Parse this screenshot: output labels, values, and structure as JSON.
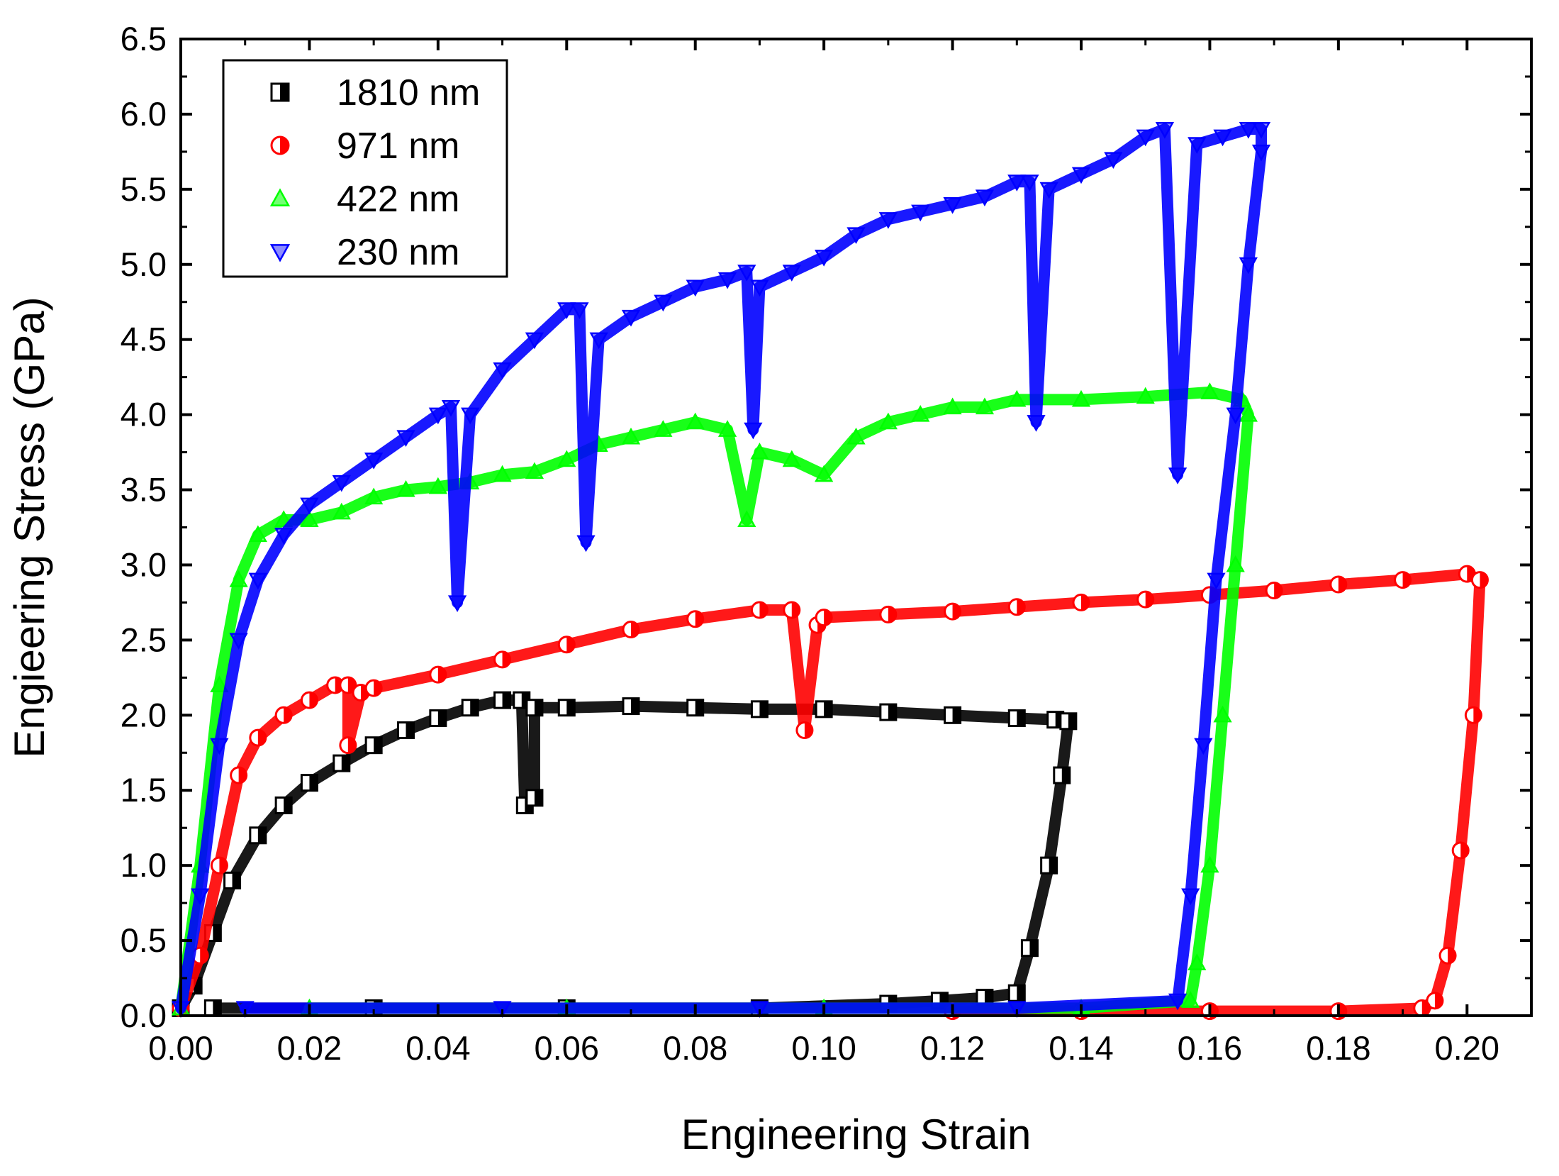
{
  "chart_data": {
    "type": "scatter",
    "title": "",
    "xlabel": "Engineering Strain",
    "ylabel": "Engieering Stress (GPa)",
    "xlim": [
      0.0,
      0.21
    ],
    "ylim": [
      0.0,
      6.5
    ],
    "xticks": [
      "0.00",
      "0.02",
      "0.04",
      "0.06",
      "0.08",
      "0.10",
      "0.12",
      "0.14",
      "0.16",
      "0.18",
      "0.20"
    ],
    "yticks": [
      "0.0",
      "0.5",
      "1.0",
      "1.5",
      "2.0",
      "2.5",
      "3.0",
      "3.5",
      "4.0",
      "4.5",
      "5.0",
      "5.5",
      "6.0",
      "6.5"
    ],
    "grid": false,
    "legend_position": "top-left",
    "series": [
      {
        "name": "1810 nm",
        "color": "#000000",
        "marker": "square-half",
        "x": [
          0.0,
          0.002,
          0.005,
          0.008,
          0.012,
          0.016,
          0.02,
          0.025,
          0.03,
          0.035,
          0.04,
          0.045,
          0.05,
          0.053,
          0.0535,
          0.055,
          0.055,
          0.06,
          0.07,
          0.08,
          0.09,
          0.1,
          0.11,
          0.12,
          0.13,
          0.136,
          0.138,
          0.137,
          0.135,
          0.132,
          0.13,
          0.125,
          0.118,
          0.11,
          0.09,
          0.06,
          0.03,
          0.005
        ],
        "y": [
          0.05,
          0.2,
          0.55,
          0.9,
          1.2,
          1.4,
          1.55,
          1.68,
          1.8,
          1.9,
          1.98,
          2.05,
          2.1,
          2.1,
          1.4,
          1.45,
          2.05,
          2.05,
          2.06,
          2.05,
          2.04,
          2.04,
          2.02,
          2.0,
          1.98,
          1.97,
          1.96,
          1.6,
          1.0,
          0.45,
          0.15,
          0.12,
          0.1,
          0.08,
          0.05,
          0.05,
          0.05,
          0.05
        ]
      },
      {
        "name": "971 nm",
        "color": "#ff0000",
        "marker": "circle-half",
        "x": [
          0.0,
          0.003,
          0.006,
          0.009,
          0.012,
          0.016,
          0.02,
          0.024,
          0.026,
          0.026,
          0.028,
          0.03,
          0.04,
          0.05,
          0.06,
          0.07,
          0.08,
          0.09,
          0.095,
          0.097,
          0.099,
          0.1,
          0.11,
          0.12,
          0.13,
          0.14,
          0.15,
          0.16,
          0.17,
          0.18,
          0.19,
          0.2,
          0.202,
          0.201,
          0.199,
          0.197,
          0.195,
          0.193,
          0.18,
          0.16,
          0.14,
          0.12
        ],
        "y": [
          0.05,
          0.4,
          1.0,
          1.6,
          1.85,
          2.0,
          2.1,
          2.2,
          2.2,
          1.8,
          2.15,
          2.18,
          2.27,
          2.37,
          2.47,
          2.57,
          2.64,
          2.7,
          2.7,
          1.9,
          2.6,
          2.65,
          2.67,
          2.69,
          2.72,
          2.75,
          2.77,
          2.8,
          2.83,
          2.87,
          2.9,
          2.94,
          2.9,
          2.0,
          1.1,
          0.4,
          0.1,
          0.05,
          0.03,
          0.03,
          0.03,
          0.03
        ]
      },
      {
        "name": "422 nm",
        "color": "#00ff00",
        "marker": "triangle-up",
        "x": [
          0.0,
          0.003,
          0.006,
          0.009,
          0.012,
          0.016,
          0.02,
          0.025,
          0.03,
          0.035,
          0.04,
          0.045,
          0.05,
          0.055,
          0.06,
          0.065,
          0.07,
          0.075,
          0.08,
          0.085,
          0.088,
          0.09,
          0.095,
          0.1,
          0.105,
          0.11,
          0.115,
          0.12,
          0.125,
          0.13,
          0.14,
          0.15,
          0.16,
          0.165,
          0.166,
          0.164,
          0.162,
          0.16,
          0.158,
          0.157,
          0.14,
          0.1,
          0.06,
          0.02
        ],
        "y": [
          0.05,
          1.0,
          2.2,
          2.9,
          3.2,
          3.3,
          3.3,
          3.35,
          3.45,
          3.5,
          3.52,
          3.55,
          3.6,
          3.62,
          3.7,
          3.8,
          3.85,
          3.9,
          3.95,
          3.9,
          3.3,
          3.75,
          3.7,
          3.6,
          3.85,
          3.95,
          4.0,
          4.05,
          4.05,
          4.1,
          4.1,
          4.12,
          4.15,
          4.1,
          4.0,
          3.0,
          2.0,
          1.0,
          0.35,
          0.1,
          0.05,
          0.05,
          0.05,
          0.05
        ]
      },
      {
        "name": "230 nm",
        "color": "#0000ff",
        "marker": "triangle-down",
        "x": [
          0.0,
          0.003,
          0.006,
          0.009,
          0.012,
          0.016,
          0.02,
          0.025,
          0.03,
          0.035,
          0.04,
          0.042,
          0.043,
          0.045,
          0.05,
          0.055,
          0.06,
          0.062,
          0.063,
          0.065,
          0.07,
          0.075,
          0.08,
          0.085,
          0.088,
          0.089,
          0.09,
          0.095,
          0.1,
          0.105,
          0.11,
          0.115,
          0.12,
          0.125,
          0.13,
          0.132,
          0.133,
          0.135,
          0.14,
          0.145,
          0.15,
          0.153,
          0.155,
          0.158,
          0.162,
          0.166,
          0.168,
          0.168,
          0.166,
          0.164,
          0.161,
          0.159,
          0.157,
          0.155,
          0.13,
          0.09,
          0.05,
          0.01
        ],
        "y": [
          0.05,
          0.8,
          1.8,
          2.5,
          2.9,
          3.2,
          3.4,
          3.55,
          3.7,
          3.85,
          4.0,
          4.05,
          2.75,
          4.0,
          4.3,
          4.5,
          4.7,
          4.7,
          3.15,
          4.5,
          4.65,
          4.75,
          4.85,
          4.9,
          4.95,
          3.9,
          4.85,
          4.95,
          5.05,
          5.2,
          5.3,
          5.35,
          5.4,
          5.45,
          5.55,
          5.55,
          3.95,
          5.5,
          5.6,
          5.7,
          5.85,
          5.9,
          3.6,
          5.8,
          5.85,
          5.9,
          5.9,
          5.75,
          5.0,
          4.0,
          2.9,
          1.8,
          0.8,
          0.1,
          0.05,
          0.05,
          0.05,
          0.05
        ]
      }
    ]
  }
}
